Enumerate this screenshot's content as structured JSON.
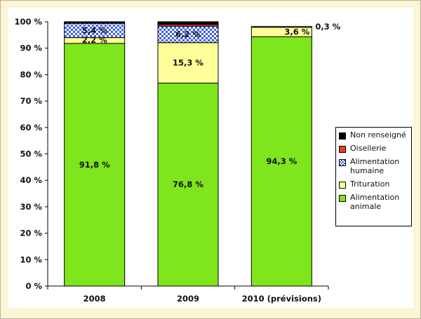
{
  "chart_data": {
    "type": "bar",
    "stacked": true,
    "categories": [
      "2008",
      "2009",
      "2010 (prévisions)"
    ],
    "series": [
      {
        "name": "Alimentation animale",
        "color": "#7fe51c",
        "pattern": "solid",
        "values": [
          91.8,
          76.8,
          94.3
        ],
        "labels": [
          "91,8 %",
          "76,8 %",
          "94,3 %"
        ]
      },
      {
        "name": "Trituration",
        "color": "#ffff99",
        "pattern": "solid",
        "values": [
          2.2,
          15.3,
          3.6
        ],
        "labels": [
          "2,2 %",
          "15,3 %",
          "3,6 %"
        ]
      },
      {
        "name": "Alimentation humaine",
        "color": "#3c5fe0",
        "pattern": "checker",
        "values": [
          5.4,
          6.2,
          0.3
        ],
        "labels": [
          "5,4 %",
          "6,2 %",
          "0,3 %"
        ]
      },
      {
        "name": "Oisellerie",
        "color": "#e8401c",
        "pattern": "solid",
        "values": [
          0.0,
          0.7,
          0.0
        ],
        "labels": [
          "",
          "",
          ""
        ]
      },
      {
        "name": "Non renseigné",
        "color": "#000000",
        "pattern": "solid",
        "values": [
          0.6,
          1.0,
          0.0
        ],
        "labels": [
          "",
          "",
          ""
        ]
      }
    ],
    "ylim": [
      0,
      100
    ],
    "yticks": [
      0,
      10,
      20,
      30,
      40,
      50,
      60,
      70,
      80,
      90,
      100
    ],
    "ytick_labels": [
      "0 %",
      "10 %",
      "20 %",
      "30 %",
      "40 %",
      "50 %",
      "60 %",
      "70 %",
      "80 %",
      "90 %",
      "100 %"
    ],
    "legend_position": "right",
    "legend_order": [
      "Non renseigné",
      "Oisellerie",
      "Alimentation humaine",
      "Trituration",
      "Alimentation animale"
    ],
    "title": "",
    "xlabel": "",
    "ylabel": ""
  }
}
